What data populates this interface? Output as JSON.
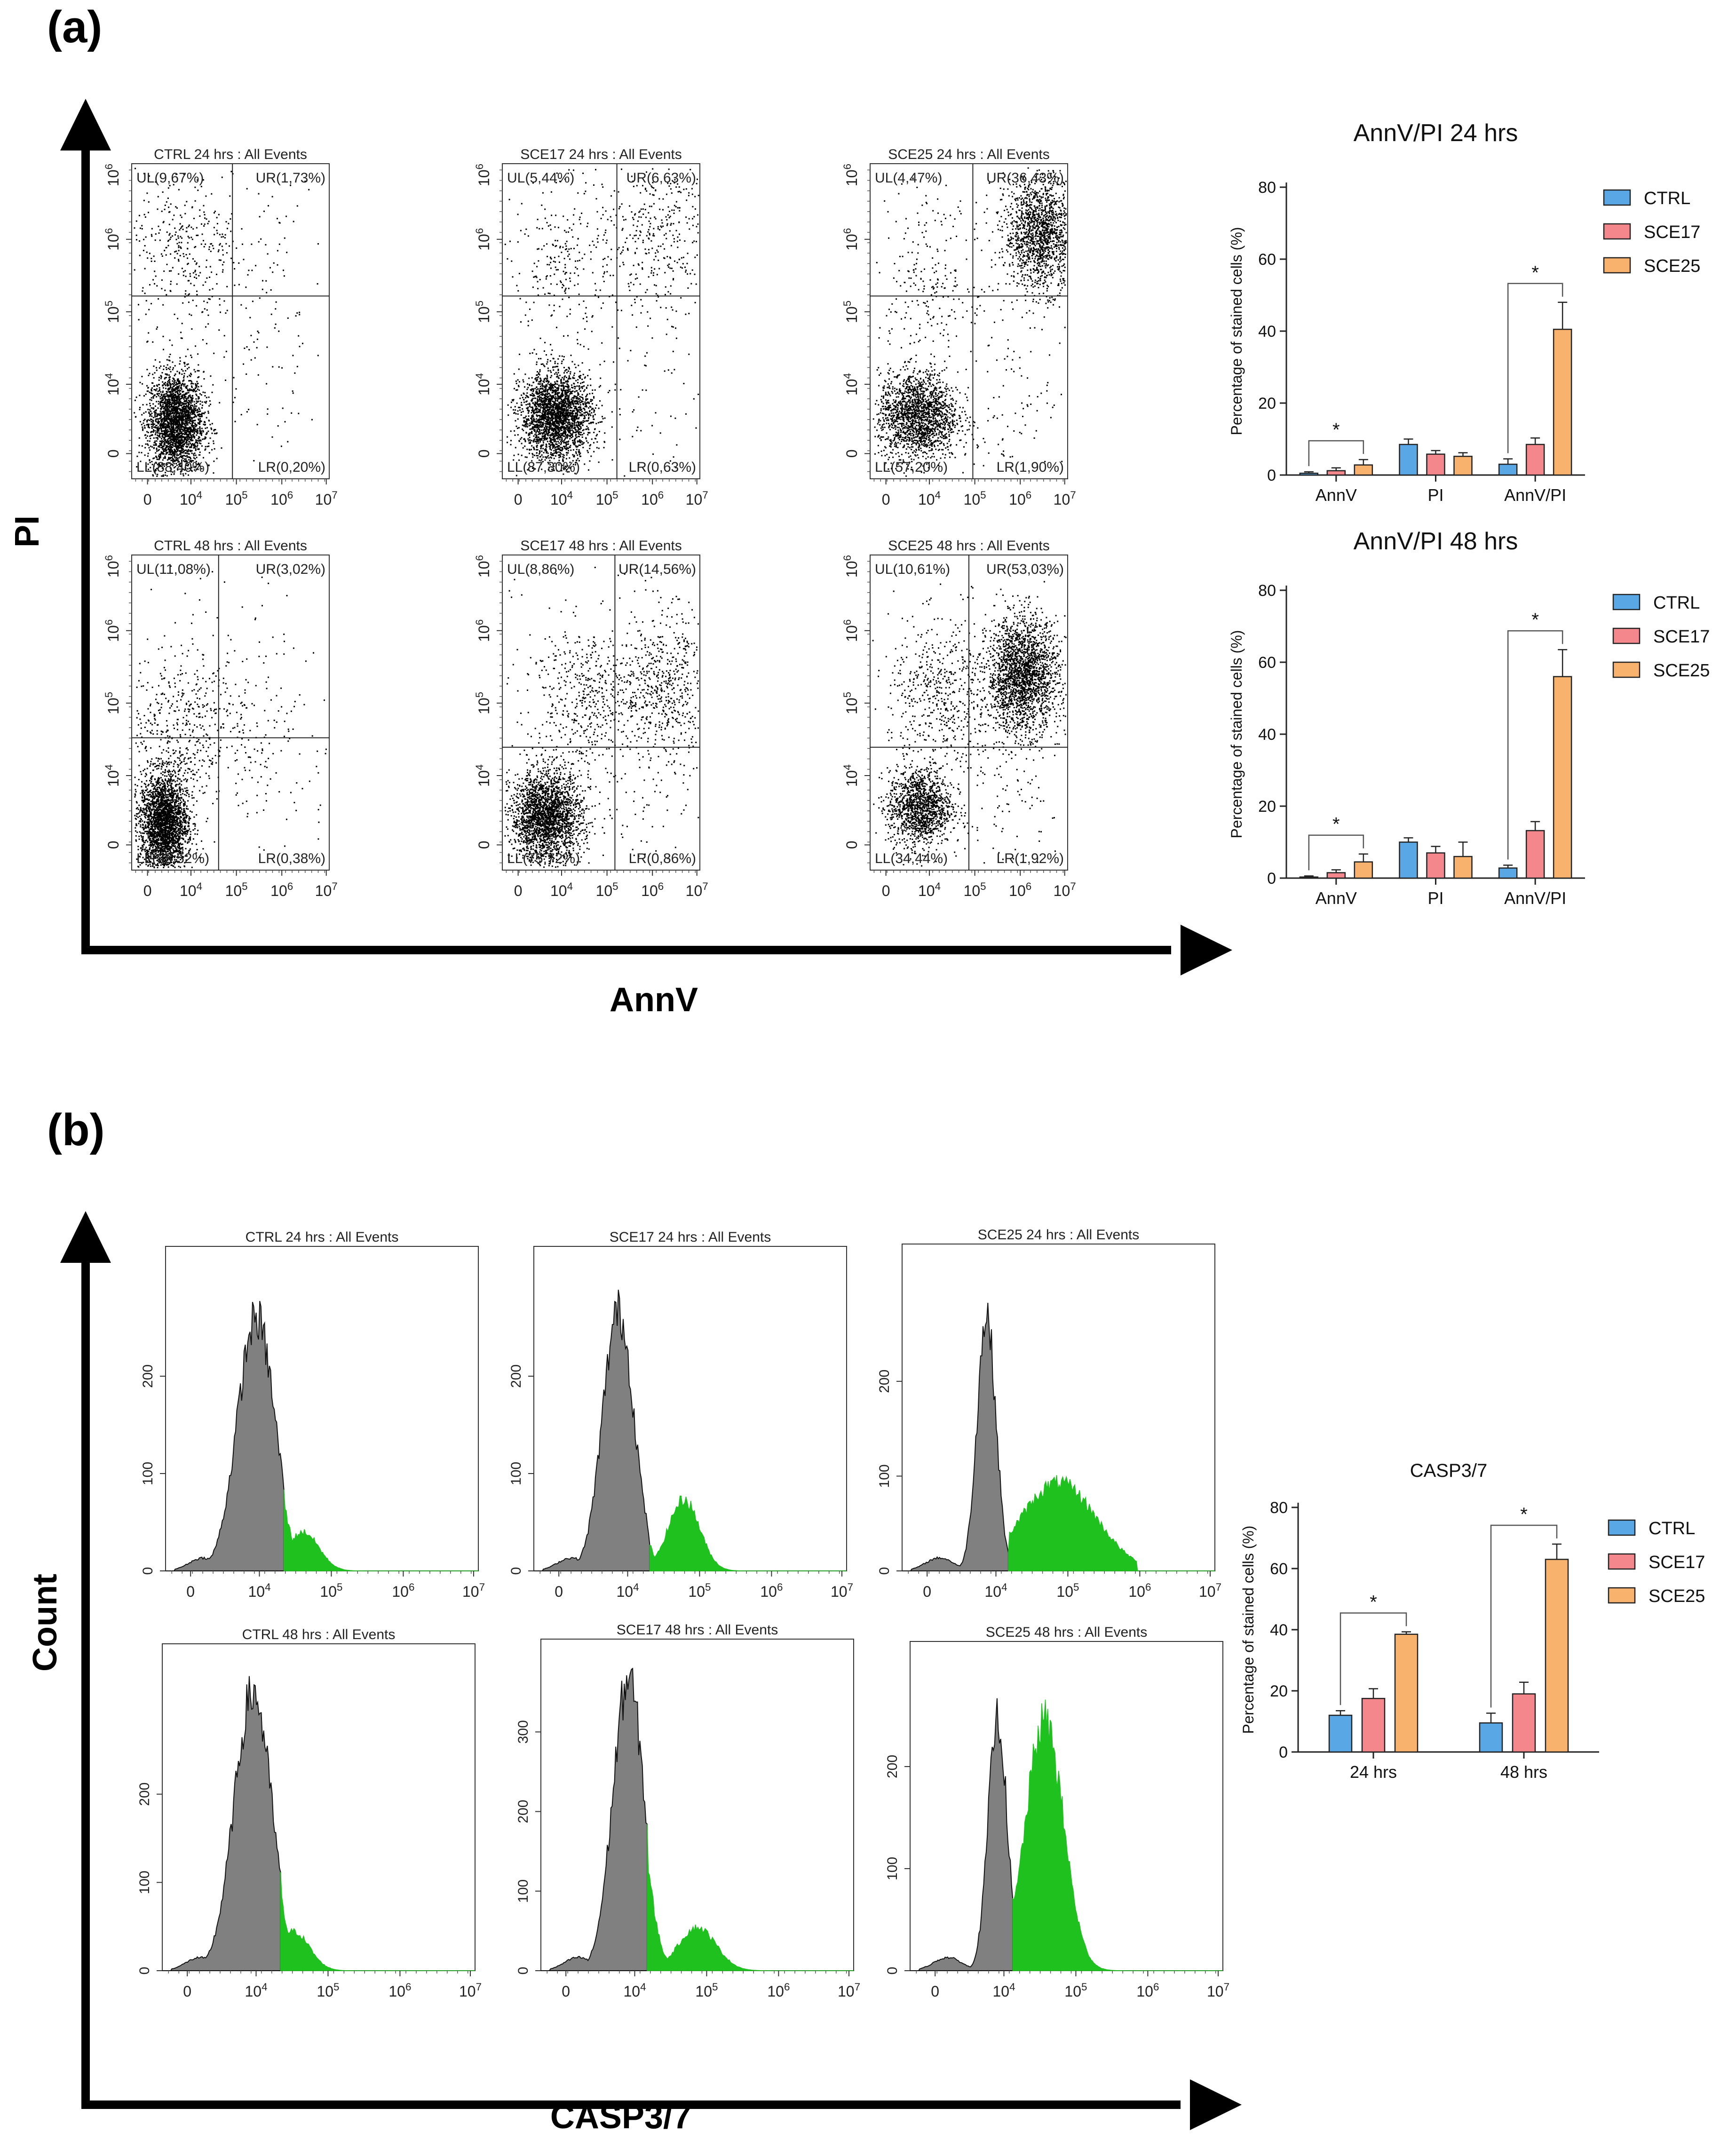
{
  "figure": {
    "panel_labels": [
      "(a)",
      "(b)"
    ],
    "axis_titles": {
      "a_y": "PI",
      "a_x": "AnnV",
      "b_y": "Count",
      "b_x": "CASP3/7"
    }
  },
  "colors": {
    "CTRL": "#5aa7e6",
    "SCE17": "#f4878b",
    "SCE25": "#f9b26d",
    "gray_hist": "#808080",
    "green_hist": "#1fc11f"
  },
  "scatter_plots": [
    {
      "title": "CTRL 24 hrs : All Events",
      "quadrants": {
        "UL": "UL(9,67%)",
        "UR": "UR(1,73%)",
        "LL": "LL(88,40%)",
        "LR": "LR(0,20%)"
      }
    },
    {
      "title": "SCE17 24 hrs : All Events",
      "quadrants": {
        "UL": "UL(5,44%)",
        "UR": "UR(6,63%)",
        "LL": "LL(87,30%)",
        "LR": "LR(0,63%)"
      }
    },
    {
      "title": "SCE25 24 hrs : All Events",
      "quadrants": {
        "UL": "UL(4,47%)",
        "UR": "UR(36,43%)",
        "LL": "LL(57,20%)",
        "LR": "LR(1,90%)"
      }
    },
    {
      "title": "CTRL 48 hrs : All Events",
      "quadrants": {
        "UL": "UL(11,08%)",
        "UR": "UR(3,02%)",
        "LL": "LL(85,52%)",
        "LR": "LR(0,38%)"
      }
    },
    {
      "title": "SCE17 48 hrs : All Events",
      "quadrants": {
        "UL": "UL(8,86%)",
        "UR": "UR(14,56%)",
        "LL": "LL(75,72%)",
        "LR": "LR(0,86%)"
      }
    },
    {
      "title": "SCE25 48 hrs : All Events",
      "quadrants": {
        "UL": "UL(10,61%)",
        "UR": "UR(53,03%)",
        "LL": "LL(34,44%)",
        "LR": "LR(1,92%)"
      }
    }
  ],
  "histograms": [
    {
      "title": "CTRL 24 hrs : All Events",
      "y_ticks": [
        "0",
        "100",
        "200"
      ]
    },
    {
      "title": "SCE17 24 hrs : All Events",
      "y_ticks": [
        "0",
        "100",
        "200"
      ]
    },
    {
      "title": "SCE25 24 hrs : All Events",
      "y_ticks": [
        "0",
        "100",
        "200"
      ]
    },
    {
      "title": "CTRL 48 hrs : All Events",
      "y_ticks": [
        "0",
        "100",
        "200"
      ]
    },
    {
      "title": "SCE17 48 hrs : All Events",
      "y_ticks": [
        "0",
        "100",
        "200",
        "300"
      ]
    },
    {
      "title": "SCE25 48 hrs : All Events",
      "y_ticks": [
        "0",
        "100",
        "200"
      ]
    }
  ],
  "chart_data": [
    {
      "type": "bar",
      "title": "AnnV/PI 24 hrs",
      "categories": [
        "AnnV",
        "PI",
        "AnnV/PI"
      ],
      "ylabel": "Percentage of stained cells (%)",
      "ylim": [
        0,
        80
      ],
      "yticks": [
        0,
        20,
        40,
        60,
        80
      ],
      "series": [
        {
          "name": "CTRL",
          "values": [
            0.5,
            8.5,
            3
          ],
          "errors": [
            0.4,
            1.5,
            1.5
          ]
        },
        {
          "name": "SCE17",
          "values": [
            1.2,
            5.8,
            8.5
          ],
          "errors": [
            0.8,
            1,
            1.8
          ]
        },
        {
          "name": "SCE25",
          "values": [
            2.8,
            5.2,
            40.5
          ],
          "errors": [
            1.5,
            1,
            7.5
          ]
        }
      ],
      "significance": [
        {
          "category": "AnnV",
          "label": "*"
        },
        {
          "category": "AnnV/PI",
          "label": "*"
        }
      ]
    },
    {
      "type": "bar",
      "title": "AnnV/PI 48 hrs",
      "categories": [
        "AnnV",
        "PI",
        "AnnV/PI"
      ],
      "ylabel": "Percentage of stained cells (%)",
      "ylim": [
        0,
        80
      ],
      "yticks": [
        0,
        20,
        40,
        60,
        80
      ],
      "series": [
        {
          "name": "CTRL",
          "values": [
            0.3,
            10,
            2.8
          ],
          "errors": [
            0.3,
            1.2,
            0.8
          ]
        },
        {
          "name": "SCE17",
          "values": [
            1.5,
            7,
            13.2
          ],
          "errors": [
            0.8,
            1.8,
            2.5
          ]
        },
        {
          "name": "SCE25",
          "values": [
            4.5,
            6,
            56
          ],
          "errors": [
            2.2,
            4,
            7.5
          ]
        }
      ],
      "significance": [
        {
          "category": "AnnV",
          "label": "*"
        },
        {
          "category": "AnnV/PI",
          "label": "*"
        }
      ]
    },
    {
      "type": "bar",
      "title": "CASP3/7",
      "categories": [
        "24 hrs",
        "48 hrs"
      ],
      "ylabel": "Percentage of stained cells (%)",
      "ylim": [
        0,
        80
      ],
      "yticks": [
        0,
        20,
        40,
        60,
        80
      ],
      "series": [
        {
          "name": "CTRL",
          "values": [
            12,
            9.5
          ],
          "errors": [
            1.5,
            3.2
          ]
        },
        {
          "name": "SCE17",
          "values": [
            17.5,
            19
          ],
          "errors": [
            3.2,
            3.8
          ]
        },
        {
          "name": "SCE25",
          "values": [
            38.5,
            63
          ],
          "errors": [
            0.8,
            5
          ]
        }
      ],
      "significance": [
        {
          "category": "24 hrs",
          "label": "*"
        },
        {
          "category": "48 hrs",
          "label": "*"
        }
      ]
    }
  ]
}
